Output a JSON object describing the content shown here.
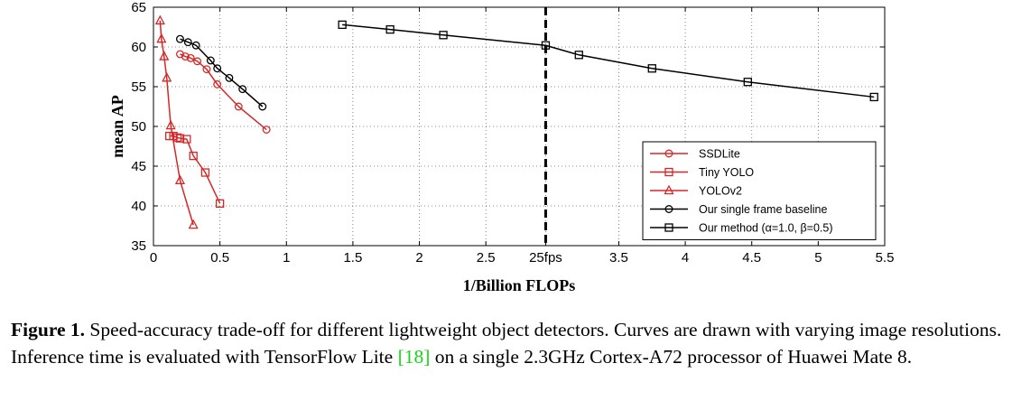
{
  "chart_data": {
    "type": "line",
    "xlabel": "1/Billion FLOPs",
    "ylabel": "mean AP",
    "xlim": [
      0,
      5.5
    ],
    "ylim": [
      35,
      65
    ],
    "x_ticks": [
      "0",
      "0.5",
      "1",
      "1.5",
      "2",
      "2.5",
      "25fps",
      "3.5",
      "4",
      "4.5",
      "5",
      "5.5"
    ],
    "x_tick_values": [
      0,
      0.5,
      1,
      1.5,
      2,
      2.5,
      2.95,
      3.5,
      4,
      4.5,
      5,
      5.5
    ],
    "y_ticks": [
      "35",
      "40",
      "45",
      "50",
      "55",
      "60",
      "65"
    ],
    "y_tick_values": [
      35,
      40,
      45,
      50,
      55,
      60,
      65
    ],
    "grid": true,
    "legend_position": "bottom-right",
    "reference_line": {
      "x": 2.95,
      "label": "25fps",
      "style": "dashed"
    },
    "series": [
      {
        "name": "SSDLite",
        "color": "#d62728",
        "marker": "circle",
        "points": [
          [
            0.2,
            59.1
          ],
          [
            0.24,
            58.8
          ],
          [
            0.28,
            58.6
          ],
          [
            0.33,
            58.2
          ],
          [
            0.4,
            57.2
          ],
          [
            0.48,
            55.3
          ],
          [
            0.64,
            52.5
          ],
          [
            0.85,
            49.6
          ]
        ]
      },
      {
        "name": "Tiny YOLO",
        "color": "#d62728",
        "marker": "square",
        "points": [
          [
            0.12,
            48.8
          ],
          [
            0.15,
            48.8
          ],
          [
            0.18,
            48.6
          ],
          [
            0.2,
            48.5
          ],
          [
            0.25,
            48.4
          ],
          [
            0.3,
            46.3
          ],
          [
            0.39,
            44.2
          ],
          [
            0.5,
            40.3
          ]
        ]
      },
      {
        "name": "YOLOv2",
        "color": "#d62728",
        "marker": "triangle",
        "points": [
          [
            0.05,
            63.3
          ],
          [
            0.06,
            61.0
          ],
          [
            0.08,
            58.8
          ],
          [
            0.1,
            56.1
          ],
          [
            0.13,
            50.1
          ],
          [
            0.2,
            43.2
          ],
          [
            0.3,
            37.6
          ]
        ]
      },
      {
        "name": "Our single frame baseline",
        "color": "#000000",
        "marker": "circle",
        "points": [
          [
            0.2,
            61.0
          ],
          [
            0.26,
            60.6
          ],
          [
            0.32,
            60.2
          ],
          [
            0.43,
            58.3
          ],
          [
            0.48,
            57.3
          ],
          [
            0.57,
            56.1
          ],
          [
            0.67,
            54.7
          ],
          [
            0.82,
            52.5
          ]
        ]
      },
      {
        "name": "Our method (α=1.0, β=0.5)",
        "color": "#000000",
        "marker": "square",
        "points": [
          [
            1.42,
            62.8
          ],
          [
            1.78,
            62.2
          ],
          [
            2.18,
            61.5
          ],
          [
            2.95,
            60.2
          ],
          [
            3.2,
            59.0
          ],
          [
            3.75,
            57.3
          ],
          [
            4.47,
            55.6
          ],
          [
            5.42,
            53.7
          ]
        ]
      }
    ]
  },
  "caption": {
    "label": "Figure 1.",
    "text_before_cite": " Speed-accuracy trade-off for different lightweight object detectors. Curves are drawn with varying image resolutions. Inference time is evaluated with TensorFlow Lite ",
    "cite": "[18]",
    "text_after_cite": " on a single 2.3GHz Cortex-A72 processor of Huawei Mate 8."
  }
}
